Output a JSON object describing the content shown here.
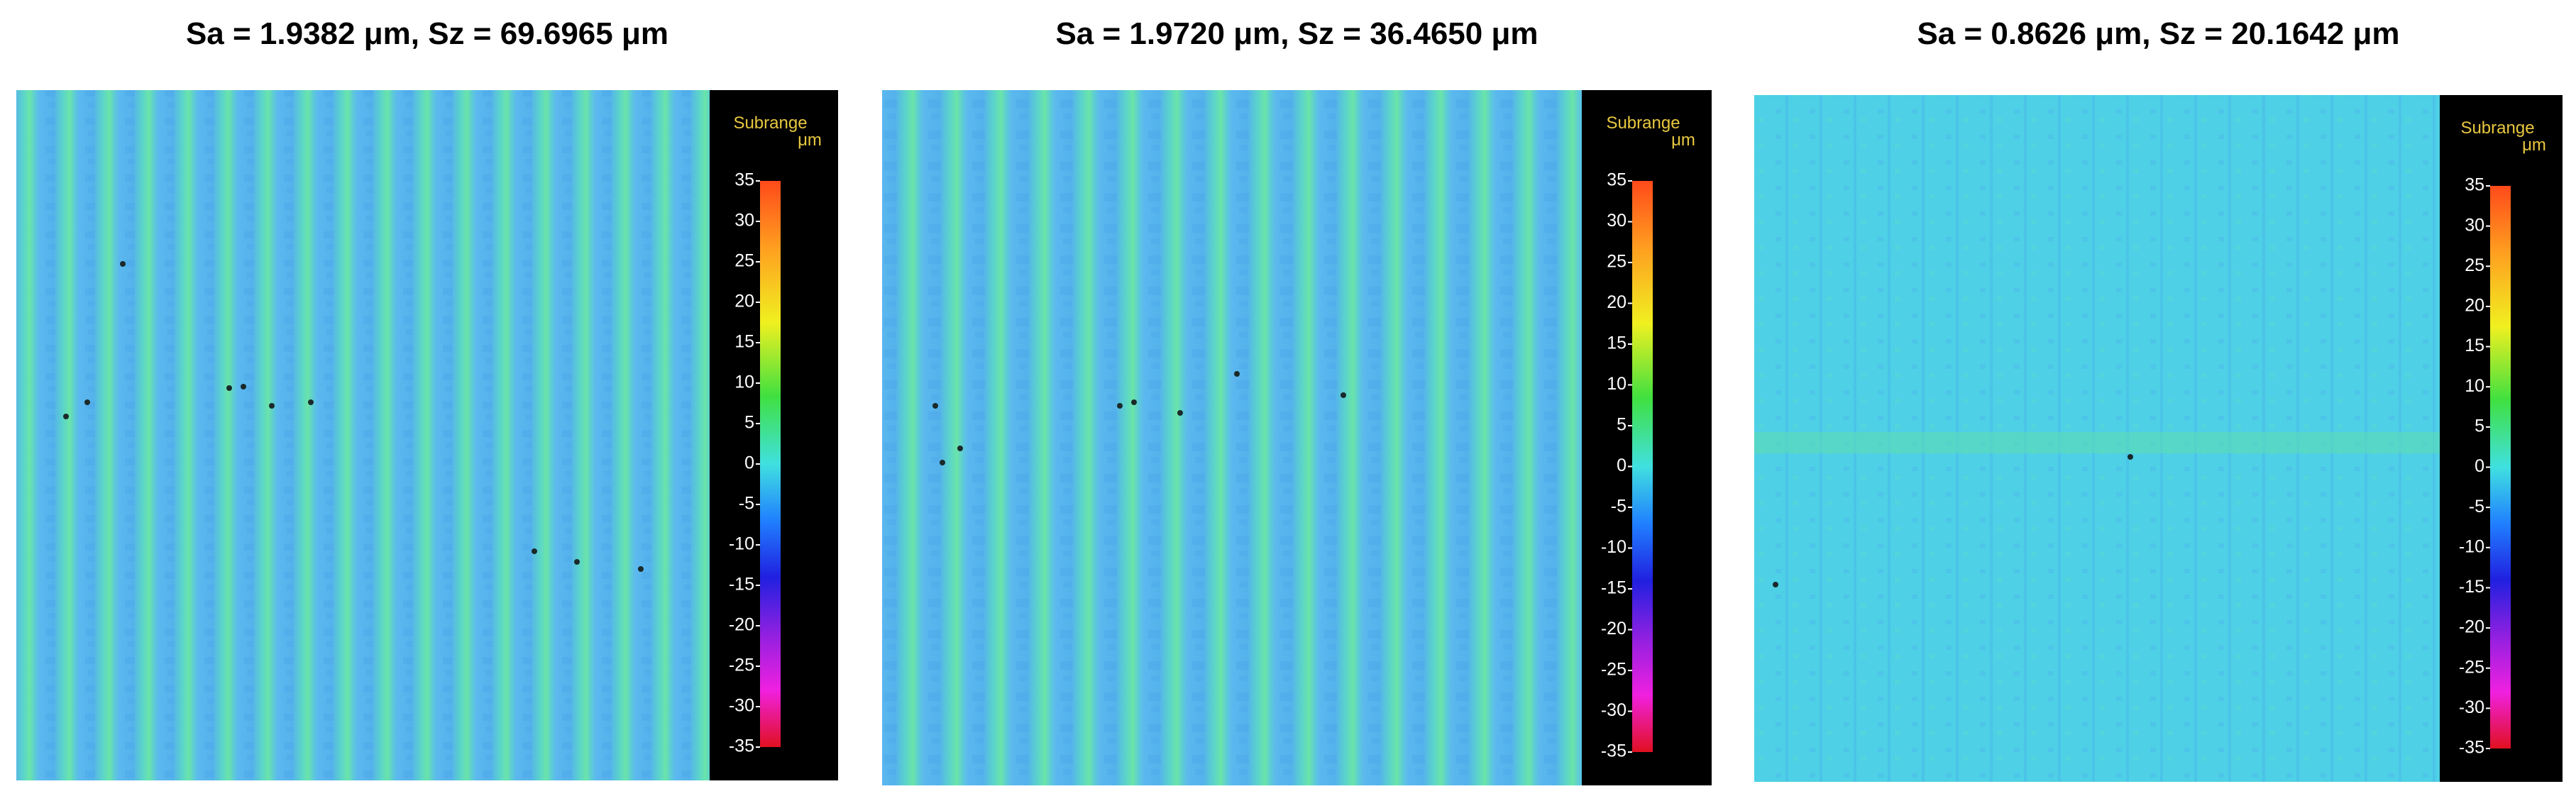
{
  "panels": [
    {
      "title": "Sa = 1.9382 μm,  Sz = 69.6965 μm",
      "colorbar": {
        "label": "Subrange",
        "unit": "μm",
        "ticks": [
          35,
          30,
          25,
          20,
          15,
          10,
          5,
          0,
          -5,
          -10,
          -15,
          -20,
          -25,
          -30,
          -35
        ]
      }
    },
    {
      "title": "Sa = 1.9720 μm, Sz = 36.4650 μm",
      "colorbar": {
        "label": "Subrange",
        "unit": "μm",
        "ticks": [
          35,
          30,
          25,
          20,
          15,
          10,
          5,
          0,
          -5,
          -10,
          -15,
          -20,
          -25,
          -30,
          -35
        ]
      }
    },
    {
      "title": "Sa = 0.8626 μm, Sz = 20.1642 μm",
      "colorbar": {
        "label": "Subrange",
        "unit": "μm",
        "ticks": [
          35,
          30,
          25,
          20,
          15,
          10,
          5,
          0,
          -5,
          -10,
          -15,
          -20,
          -25,
          -30,
          -35
        ]
      }
    }
  ]
}
